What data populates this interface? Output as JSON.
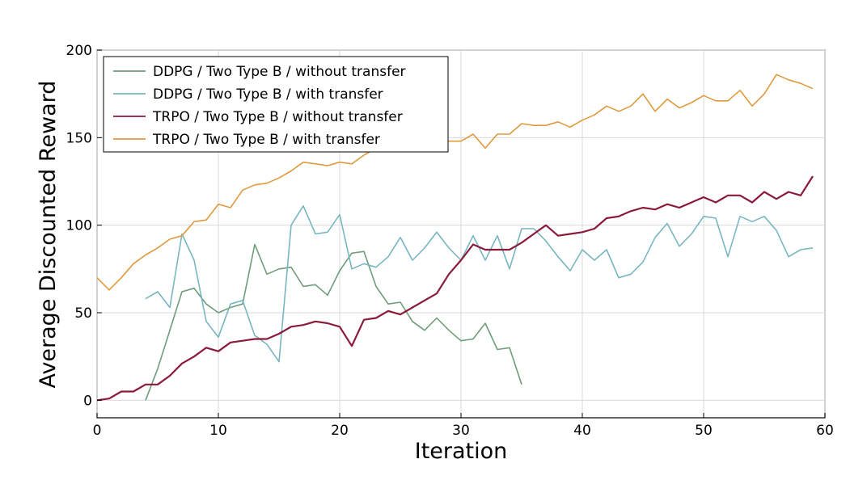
{
  "chart_data": {
    "type": "line",
    "xlabel": "Iteration",
    "ylabel": "Average Discounted Reward",
    "xlim": [
      0,
      60
    ],
    "ylim": [
      -10,
      200
    ],
    "xticks": [
      0,
      10,
      20,
      30,
      40,
      50,
      60
    ],
    "yticks": [
      0,
      50,
      100,
      150,
      200
    ],
    "grid": true,
    "legend_position": "upper-left",
    "series": [
      {
        "name": "DDPG / Two Type B  / without transfer",
        "color": "#6f9d7a",
        "x": [
          4,
          5,
          6,
          7,
          8,
          9,
          10,
          11,
          12,
          13,
          14,
          15,
          16,
          17,
          18,
          19,
          20,
          21,
          22,
          23,
          24,
          25,
          26,
          27,
          28,
          29,
          30,
          31,
          32,
          33,
          34,
          35
        ],
        "y": [
          0,
          18,
          40,
          62,
          64,
          55,
          50,
          53,
          55,
          89,
          72,
          75,
          76,
          65,
          66,
          60,
          74,
          84,
          85,
          65,
          55,
          56,
          45,
          40,
          47,
          40,
          34,
          35,
          44,
          29,
          30,
          9
        ]
      },
      {
        "name": "DDPG / Two Type B  / with transfer",
        "color": "#78b6c1",
        "x": [
          4,
          5,
          6,
          7,
          8,
          9,
          10,
          11,
          12,
          13,
          14,
          15,
          16,
          17,
          18,
          19,
          20,
          21,
          22,
          23,
          24,
          25,
          26,
          27,
          28,
          29,
          30,
          31,
          32,
          33,
          34,
          35,
          36,
          37,
          38,
          39,
          40,
          41,
          42,
          43,
          44,
          45,
          46,
          47,
          48,
          49,
          50,
          51,
          52,
          53,
          54,
          55,
          56,
          57,
          58,
          59
        ],
        "y": [
          58,
          62,
          53,
          95,
          80,
          45,
          36,
          55,
          57,
          37,
          32,
          22,
          100,
          111,
          95,
          96,
          106,
          75,
          78,
          76,
          82,
          93,
          80,
          87,
          96,
          87,
          80,
          94,
          80,
          94,
          75,
          98,
          98,
          91,
          82,
          74,
          86,
          80,
          86,
          70,
          72,
          79,
          93,
          101,
          88,
          95,
          105,
          104,
          82,
          105,
          102,
          105,
          97,
          82,
          86,
          87
        ]
      },
      {
        "name": "TRPO / Two Type B  / without transfer",
        "color": "#8b1a3a",
        "x": [
          0,
          1,
          2,
          3,
          4,
          5,
          6,
          7,
          8,
          9,
          10,
          11,
          12,
          13,
          14,
          15,
          16,
          17,
          18,
          19,
          20,
          21,
          22,
          23,
          24,
          25,
          26,
          27,
          28,
          29,
          30,
          31,
          32,
          33,
          34,
          35,
          36,
          37,
          38,
          39,
          40,
          41,
          42,
          43,
          44,
          45,
          46,
          47,
          48,
          49,
          50,
          51,
          52,
          53,
          54,
          55,
          56,
          57,
          58,
          59
        ],
        "y": [
          0,
          1,
          5,
          5,
          9,
          9,
          14,
          21,
          25,
          30,
          28,
          33,
          34,
          35,
          35,
          38,
          42,
          43,
          45,
          44,
          42,
          31,
          46,
          47,
          51,
          49,
          53,
          57,
          61,
          72,
          80,
          89,
          86,
          86,
          86,
          90,
          95,
          100,
          94,
          95,
          96,
          98,
          104,
          105,
          108,
          110,
          109,
          112,
          110,
          113,
          116,
          113,
          117,
          117,
          113,
          119,
          115,
          119,
          117,
          128
        ]
      },
      {
        "name": "TRPO / Two Type B  / with transfer",
        "color": "#e09a3e",
        "x": [
          0,
          1,
          2,
          3,
          4,
          5,
          6,
          7,
          8,
          9,
          10,
          11,
          12,
          13,
          14,
          15,
          16,
          17,
          18,
          19,
          20,
          21,
          22,
          23,
          24,
          25,
          26,
          27,
          28,
          29,
          30,
          31,
          32,
          33,
          34,
          35,
          36,
          37,
          38,
          39,
          40,
          41,
          42,
          43,
          44,
          45,
          46,
          47,
          48,
          49,
          50,
          51,
          52,
          53,
          54,
          55,
          56,
          57,
          58,
          59
        ],
        "y": [
          70,
          63,
          70,
          78,
          83,
          87,
          92,
          94,
          102,
          103,
          112,
          110,
          120,
          123,
          124,
          127,
          131,
          136,
          135,
          134,
          136,
          135,
          140,
          144,
          145,
          146,
          147,
          148,
          148,
          148,
          148,
          152,
          144,
          152,
          152,
          158,
          157,
          157,
          159,
          156,
          160,
          163,
          168,
          165,
          168,
          175,
          165,
          172,
          167,
          170,
          174,
          171,
          171,
          177,
          168,
          175,
          186,
          183,
          181,
          178
        ]
      }
    ]
  }
}
